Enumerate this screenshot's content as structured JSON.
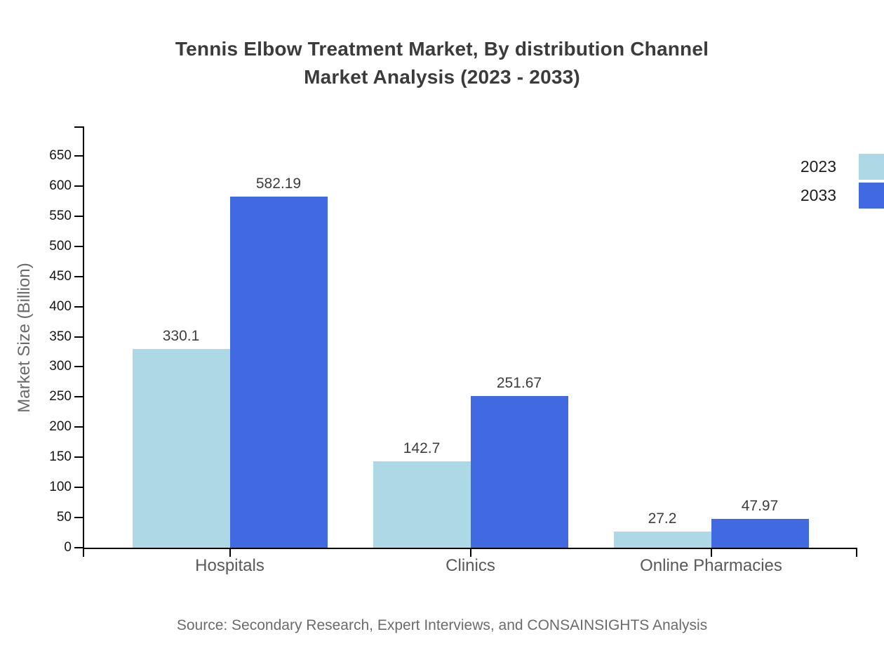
{
  "title": {
    "line1": "Tennis Elbow Treatment Market, By distribution Channel",
    "line2": "Market Analysis (2023 - 2033)"
  },
  "source": "Source: Secondary Research, Expert Interviews, and CONSAINSIGHTS Analysis",
  "colors": {
    "series_2023": "#ADD8E6",
    "series_2033": "#4169E1",
    "axis": "#000000",
    "title_text": "#3b3b3b",
    "tick_text": "#161616",
    "category_text": "#595959",
    "muted_text": "#6b6b6b"
  },
  "chart_data": {
    "type": "bar",
    "categories": [
      "Hospitals",
      "Clinics",
      "Online Pharmacies"
    ],
    "series": [
      {
        "name": "2023",
        "color": "#ADD8E6",
        "values": [
          330.1,
          142.7,
          27.2
        ]
      },
      {
        "name": "2033",
        "color": "#4169E1",
        "values": [
          582.19,
          251.67,
          47.97
        ]
      }
    ],
    "title": "Tennis Elbow Treatment Market, By distribution Channel Market Analysis (2023 - 2033)",
    "xlabel": "",
    "ylabel": "Market Size (Billion)",
    "ylim": [
      0,
      650
    ],
    "ytick_step": 50,
    "bar_value_labels": [
      [
        "330.1",
        "582.19"
      ],
      [
        "142.7",
        "251.67"
      ],
      [
        "27.2",
        "47.97"
      ]
    ],
    "grid": false,
    "legend_position": "top-right"
  }
}
